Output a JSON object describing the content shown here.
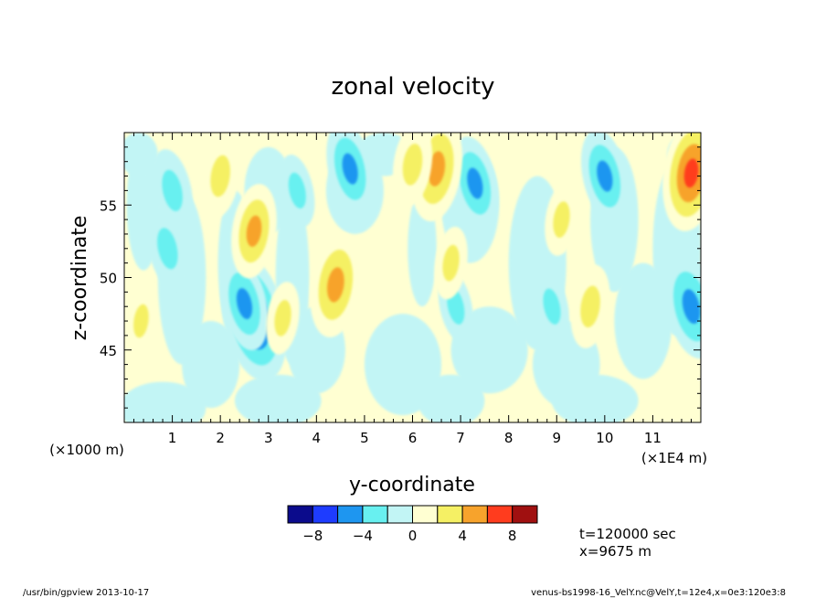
{
  "chart_data": {
    "type": "heatmap",
    "title": "zonal velocity",
    "xlabel": "y-coordinate",
    "ylabel": "z-coordinate",
    "x_unit_left": "(×1000 m)",
    "x_unit_right": "(×1E4 m)",
    "xlim": [
      0,
      12
    ],
    "ylim": [
      40,
      60
    ],
    "x_ticks": [
      "1",
      "2",
      "3",
      "4",
      "5",
      "6",
      "7",
      "8",
      "9",
      "10",
      "11"
    ],
    "y_ticks": [
      "45",
      "50",
      "55"
    ],
    "levels": [
      -10,
      -8,
      -6,
      -4,
      -2,
      0,
      2,
      4,
      6,
      8,
      10
    ],
    "colorbar_labels": [
      "-8",
      "-4",
      "0",
      "4",
      "8"
    ],
    "colors": [
      "#0b0b8c",
      "#1e3cff",
      "#1e96f0",
      "#68f0f0",
      "#c2f5f5",
      "#ffffd2",
      "#f5f064",
      "#f7a32c",
      "#ff3c1e",
      "#a01010"
    ],
    "features": [
      {
        "y": 2.7,
        "z": 47.2,
        "value": -8
      },
      {
        "y": 2.5,
        "z": 48.2,
        "value": -5
      },
      {
        "y": 0.9,
        "z": 52.0,
        "value": -4
      },
      {
        "y": 1.0,
        "z": 56.0,
        "value": -4
      },
      {
        "y": 3.6,
        "z": 56.0,
        "value": -3
      },
      {
        "y": 4.7,
        "z": 57.5,
        "value": -5
      },
      {
        "y": 7.3,
        "z": 56.5,
        "value": -5
      },
      {
        "y": 10.0,
        "z": 57.0,
        "value": -5
      },
      {
        "y": 11.8,
        "z": 48.0,
        "value": -6
      },
      {
        "y": 8.9,
        "z": 48.0,
        "value": -3
      },
      {
        "y": 6.9,
        "z": 48.0,
        "value": -3
      },
      {
        "y": 2.7,
        "z": 53.2,
        "value": 5
      },
      {
        "y": 2.0,
        "z": 57.0,
        "value": 4
      },
      {
        "y": 4.4,
        "z": 49.5,
        "value": 6
      },
      {
        "y": 6.5,
        "z": 57.5,
        "value": 6
      },
      {
        "y": 6.0,
        "z": 57.8,
        "value": 4
      },
      {
        "y": 11.8,
        "z": 57.2,
        "value": 7
      },
      {
        "y": 9.1,
        "z": 54.0,
        "value": 3
      },
      {
        "y": 9.7,
        "z": 48.0,
        "value": 4
      },
      {
        "y": 6.8,
        "z": 51.0,
        "value": 3
      },
      {
        "y": 3.3,
        "z": 47.2,
        "value": 3
      },
      {
        "y": 0.35,
        "z": 47.0,
        "value": 2.5
      }
    ]
  },
  "annotation": {
    "time": "t=120000 sec",
    "position": "x=9675 m"
  },
  "footer": {
    "left": "/usr/bin/gpview  2013-10-17",
    "right": "venus-bs1998-16_VelY.nc@VelY,t=12e4,x=0e3:120e3:8"
  }
}
